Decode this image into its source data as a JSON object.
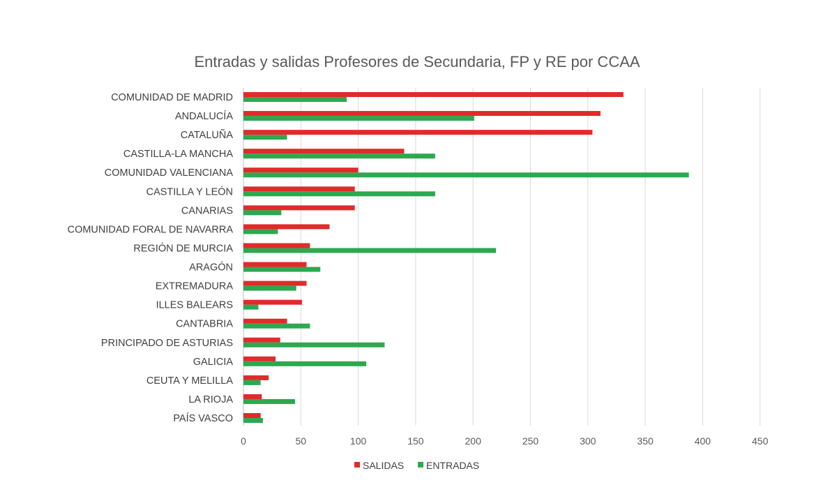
{
  "chart_data": {
    "type": "bar",
    "orientation": "horizontal",
    "title": "Entradas y salidas Profesores de Secundaria, FP y RE por CCAA",
    "xlabel": "",
    "ylabel": "",
    "xlim": [
      0,
      450
    ],
    "xticks": [
      0,
      50,
      100,
      150,
      200,
      250,
      300,
      350,
      400,
      450
    ],
    "grid": true,
    "legend_position": "bottom",
    "categories": [
      "COMUNIDAD DE MADRID",
      "ANDALUCÍA",
      "CATALUÑA",
      "CASTILLA-LA MANCHA",
      "COMUNIDAD VALENCIANA",
      "CASTILLA Y LEÓN",
      "CANARIAS",
      "COMUNIDAD FORAL DE NAVARRA",
      "REGIÓN DE MURCIA",
      "ARAGÓN",
      "EXTREMADURA",
      "ILLES BALEARS",
      "CANTABRIA",
      "PRINCIPADO DE ASTURIAS",
      "GALICIA",
      "CEUTA Y MELILLA",
      "LA RIOJA",
      "PAÍS VASCO"
    ],
    "series": [
      {
        "name": "SALIDAS",
        "color": "#e02b2b",
        "values": [
          331,
          311,
          304,
          140,
          100,
          97,
          97,
          75,
          58,
          55,
          55,
          51,
          38,
          32,
          28,
          22,
          16,
          15
        ]
      },
      {
        "name": "ENTRADAS",
        "color": "#2ea84f",
        "values": [
          90,
          201,
          38,
          167,
          388,
          167,
          33,
          30,
          220,
          67,
          46,
          13,
          58,
          123,
          107,
          15,
          45,
          17
        ]
      }
    ]
  }
}
